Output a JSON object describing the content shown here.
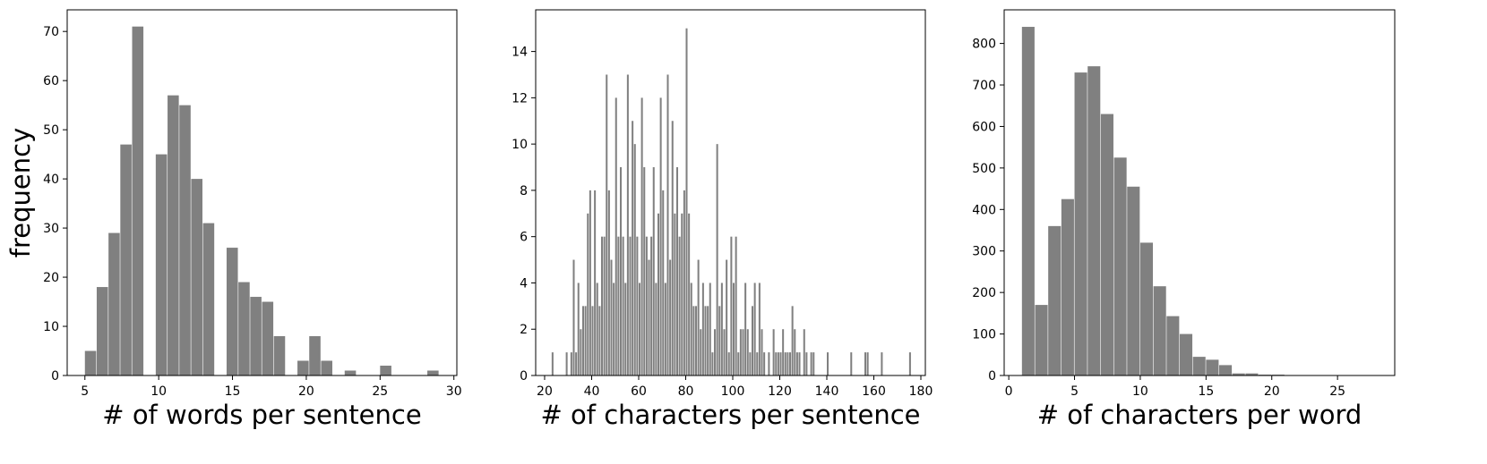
{
  "chart_data": [
    {
      "type": "histogram",
      "xlabel": "# of words per sentence",
      "ylabel": "frequency",
      "color": "#808080",
      "bins": [
        5,
        5.8,
        6.6,
        7.4,
        8.2,
        9,
        9.8,
        10.6,
        11.4,
        12.2,
        13,
        13.8,
        14.6,
        15.4,
        16.2,
        17,
        17.8,
        18.6,
        19.4,
        20.2,
        21,
        21.8,
        22.6,
        23.4,
        24.2,
        25,
        25.8,
        26.6,
        27.4,
        28.2,
        29
      ],
      "values": [
        5,
        18,
        29,
        47,
        71,
        0,
        45,
        57,
        55,
        40,
        31,
        0,
        26,
        19,
        16,
        15,
        8,
        0,
        3,
        8,
        3,
        0,
        1,
        0,
        0,
        2,
        0,
        0,
        0,
        1
      ],
      "xlim": [
        3.8,
        30.2
      ],
      "ylim": [
        0,
        74.4
      ],
      "xticks": [
        5,
        10,
        15,
        20,
        25,
        30
      ],
      "yticks": [
        0,
        10,
        20,
        30,
        40,
        50,
        60,
        70
      ]
    },
    {
      "type": "histogram",
      "xlabel": "# of characters per sentence",
      "color": "#808080",
      "bins": [
        23,
        24,
        25,
        26,
        27,
        28,
        29,
        30,
        31,
        32,
        33,
        34,
        35,
        36,
        37,
        38,
        39,
        40,
        41,
        42,
        43,
        44,
        45,
        46,
        47,
        48,
        49,
        50,
        51,
        52,
        53,
        54,
        55,
        56,
        57,
        58,
        59,
        60,
        61,
        62,
        63,
        64,
        65,
        66,
        67,
        68,
        69,
        70,
        71,
        72,
        73,
        74,
        75,
        76,
        77,
        78,
        79,
        80,
        81,
        82,
        83,
        84,
        85,
        86,
        87,
        88,
        89,
        90,
        91,
        92,
        93,
        94,
        95,
        96,
        97,
        98,
        99,
        100,
        101,
        102,
        103,
        104,
        105,
        106,
        107,
        108,
        109,
        110,
        111,
        112,
        113,
        114,
        115,
        116,
        117,
        118,
        119,
        120,
        121,
        122,
        123,
        124,
        125,
        126,
        127,
        128,
        129,
        130,
        131,
        132,
        133,
        134,
        135,
        136,
        137,
        138,
        139,
        140,
        141,
        142,
        143,
        144,
        145,
        146,
        147,
        148,
        149,
        150,
        151,
        152,
        153,
        154,
        155,
        156,
        157,
        158,
        159,
        160,
        161,
        162,
        163,
        164,
        165,
        166,
        167,
        168,
        169,
        170,
        171,
        172,
        173,
        174,
        175,
        176
      ],
      "values": [
        1,
        0,
        0,
        0,
        0,
        0,
        1,
        0,
        1,
        5,
        1,
        4,
        2,
        3,
        3,
        7,
        8,
        3,
        8,
        4,
        3,
        6,
        6,
        13,
        8,
        5,
        4,
        12,
        6,
        9,
        6,
        4,
        13,
        6,
        11,
        10,
        6,
        4,
        12,
        9,
        6,
        5,
        6,
        9,
        4,
        7,
        12,
        8,
        4,
        13,
        5,
        11,
        7,
        9,
        6,
        7,
        8,
        15,
        7,
        4,
        3,
        3,
        5,
        2,
        4,
        3,
        3,
        4,
        1,
        2,
        10,
        3,
        4,
        2,
        5,
        1,
        6,
        4,
        6,
        1,
        2,
        2,
        4,
        2,
        1,
        3,
        4,
        1,
        4,
        2,
        1,
        0,
        1,
        0,
        2,
        1,
        1,
        1,
        2,
        1,
        1,
        1,
        3,
        2,
        1,
        1,
        0,
        2,
        1,
        0,
        1,
        1,
        0,
        0,
        0,
        0,
        0,
        1,
        0,
        0,
        0,
        0,
        0,
        0,
        0,
        0,
        0,
        1,
        0,
        0,
        0,
        0,
        0,
        1,
        1,
        0,
        0,
        0,
        0,
        0,
        1,
        0,
        0,
        0,
        0,
        0,
        0,
        0,
        0,
        0,
        0,
        0,
        1
      ],
      "xlim": [
        16.2,
        181.9
      ],
      "ylim": [
        0,
        15.8
      ],
      "xticks": [
        20,
        40,
        60,
        80,
        100,
        120,
        140,
        160,
        180
      ],
      "yticks": [
        0,
        2,
        4,
        6,
        8,
        10,
        12,
        14
      ]
    },
    {
      "type": "histogram",
      "xlabel": "# of characters per word",
      "color": "#808080",
      "bins": [
        1,
        2,
        3,
        4,
        5,
        6,
        7,
        8,
        9,
        10,
        11,
        12,
        13,
        14,
        15,
        16,
        17,
        18,
        19,
        20,
        21,
        22,
        23,
        24,
        25,
        26,
        27,
        28
      ],
      "values": [
        840,
        170,
        360,
        425,
        730,
        745,
        630,
        525,
        455,
        320,
        215,
        143,
        100,
        45,
        38,
        25,
        5,
        5,
        2,
        2,
        1,
        1,
        0,
        0,
        0,
        0,
        1
      ],
      "xlim": [
        -0.35,
        29.35
      ],
      "ylim": [
        0,
        881
      ],
      "xticks": [
        0,
        5,
        10,
        15,
        20,
        25
      ],
      "yticks": [
        0,
        100,
        200,
        300,
        400,
        500,
        600,
        700,
        800
      ]
    }
  ]
}
